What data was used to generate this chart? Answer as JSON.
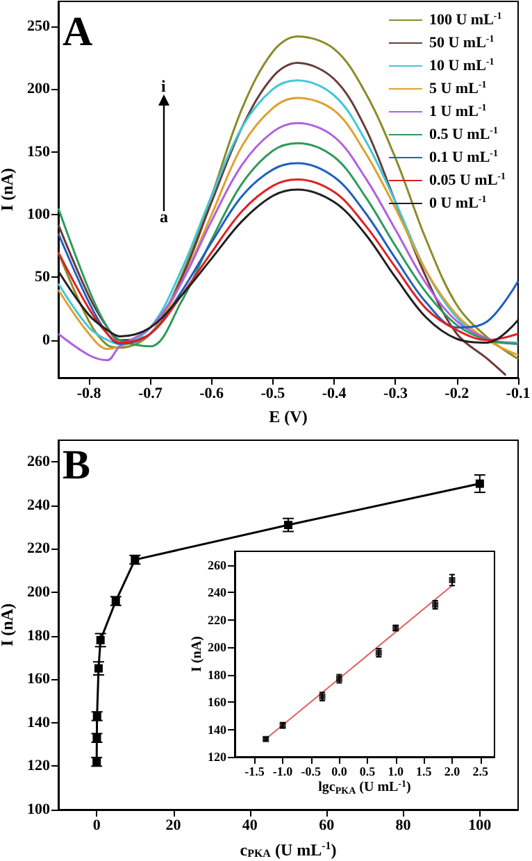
{
  "chart_data": [
    {
      "type": "line",
      "annotations": [
        "A",
        "i",
        "a"
      ],
      "xlabel": "E (V)",
      "ylabel": "I (nA)",
      "x": [
        -0.85,
        -0.8,
        -0.77,
        -0.75,
        -0.7,
        -0.65,
        -0.6,
        -0.55,
        -0.5,
        -0.46,
        -0.4,
        -0.35,
        -0.3,
        -0.25,
        -0.2,
        -0.15,
        -0.1
      ],
      "series": [
        {
          "name": "100 U mL$^{-1}$",
          "color": "#8b8b2a",
          "values": [
            70,
            15,
            -4,
            -6,
            5,
            50,
            115,
            185,
            230,
            242,
            232,
            198,
            145,
            80,
            28,
            2,
            -15
          ]
        },
        {
          "name": "50 U mL$^{-1}$",
          "color": "#6b3a3a",
          "x": [
            -0.85,
            -0.8,
            -0.77,
            -0.75,
            -0.7,
            -0.65,
            -0.6,
            -0.55,
            -0.5,
            -0.46,
            -0.4,
            -0.35,
            -0.3,
            -0.25,
            -0.2,
            -0.15,
            -0.12
          ],
          "values": [
            92,
            35,
            10,
            0,
            5,
            48,
            110,
            170,
            210,
            221,
            208,
            170,
            110,
            50,
            5,
            -15,
            -28
          ]
        },
        {
          "name": "10 U mL$^{-1}$",
          "color": "#40c8d8",
          "values": [
            45,
            10,
            0,
            -3,
            10,
            55,
            115,
            170,
            200,
            207,
            195,
            160,
            110,
            55,
            18,
            0,
            -2
          ]
        },
        {
          "name": "5 U mL$^{-1}$",
          "color": "#e0a030",
          "values": [
            40,
            5,
            -7,
            -5,
            5,
            45,
            100,
            155,
            185,
            193,
            183,
            150,
            105,
            55,
            20,
            0,
            -12
          ]
        },
        {
          "name": "1 U mL$^{-1}$",
          "color": "#b060e0",
          "values": [
            5,
            -12,
            -16,
            -5,
            10,
            45,
            95,
            140,
            166,
            173,
            162,
            130,
            88,
            45,
            15,
            1,
            -3
          ]
        },
        {
          "name": "0.5 U mL$^{-1}$",
          "color": "#2e9a5a",
          "values": [
            105,
            40,
            10,
            0,
            -5,
            30,
            80,
            125,
            151,
            157,
            146,
            115,
            75,
            38,
            12,
            0,
            -3
          ]
        },
        {
          "name": "0.1 U mL$^{-1}$",
          "color": "#2060c0",
          "values": [
            85,
            30,
            5,
            -3,
            5,
            38,
            78,
            115,
            136,
            141,
            130,
            102,
            65,
            30,
            10,
            15,
            47
          ]
        },
        {
          "name": "0.05 U mL$^{-1}$",
          "color": "#e02020",
          "values": [
            70,
            25,
            5,
            -2,
            5,
            35,
            70,
            103,
            123,
            128,
            118,
            92,
            58,
            25,
            8,
            0,
            5
          ]
        },
        {
          "name": "0 U mL$^{-1}$",
          "color": "#202020",
          "values": [
            55,
            20,
            8,
            3,
            10,
            35,
            65,
            95,
            115,
            120,
            110,
            85,
            50,
            18,
            1,
            -2,
            16
          ]
        }
      ],
      "xlim": [
        -0.85,
        -0.1
      ],
      "ylim": [
        -30,
        270
      ],
      "xticks": [
        -0.8,
        -0.7,
        -0.6,
        -0.5,
        -0.4,
        -0.3,
        -0.2,
        -0.1
      ],
      "yticks": [
        0,
        50,
        100,
        150,
        200,
        250
      ],
      "legend": "top right",
      "marker": "none"
    },
    {
      "type": "line",
      "annotations": [
        "B"
      ],
      "xlabel": "c$_{PKA}$ (U mL$^{-1}$)",
      "ylabel": "I (nA)",
      "x": [
        0,
        0.05,
        0.1,
        0.5,
        1,
        5,
        10,
        50,
        100
      ],
      "series": [
        {
          "color": "#000000",
          "values": [
            122,
            133,
            143,
            165,
            178,
            196,
            215,
            231,
            250
          ],
          "errors": [
            2,
            2,
            2,
            3,
            3,
            2,
            2,
            3,
            4
          ]
        }
      ],
      "xlim": [
        -10,
        110
      ],
      "ylim": [
        100,
        270
      ],
      "xticks": [
        0,
        20,
        40,
        60,
        80,
        100
      ],
      "yticks": [
        100,
        120,
        140,
        160,
        180,
        200,
        220,
        240,
        260
      ],
      "marker": "square"
    },
    {
      "type": "scatter",
      "xlabel": "lgc$_{PKA}$ (U mL$^{-1}$)",
      "ylabel": "I (nA)",
      "series": [
        {
          "type": "scatter",
          "color": "#000000",
          "x": [
            -1.3,
            -1,
            -0.3,
            0,
            0.7,
            1,
            1.7,
            2
          ],
          "values": [
            133,
            143,
            164,
            177,
            196,
            214,
            231,
            249
          ],
          "errors": [
            1,
            2,
            3,
            3,
            3,
            2,
            3,
            4
          ],
          "marker": "square"
        },
        {
          "type": "line",
          "color": "#e06060",
          "x": [
            -1.3,
            2
          ],
          "values": [
            133,
            245
          ],
          "marker": "none"
        }
      ],
      "xlim": [
        -1.85,
        2.75
      ],
      "ylim": [
        120,
        270
      ],
      "xticks": [
        -1.5,
        {
          "value": -1,
          "label": "-1.0"
        },
        -0.5,
        {
          "value": 0,
          "label": "0.0"
        },
        0.5,
        {
          "value": 1,
          "label": "1.0"
        },
        1.5,
        {
          "value": 2,
          "label": "2.0"
        },
        2.5
      ],
      "yticks": [
        120,
        140,
        160,
        180,
        200,
        220,
        240,
        260
      ]
    }
  ]
}
